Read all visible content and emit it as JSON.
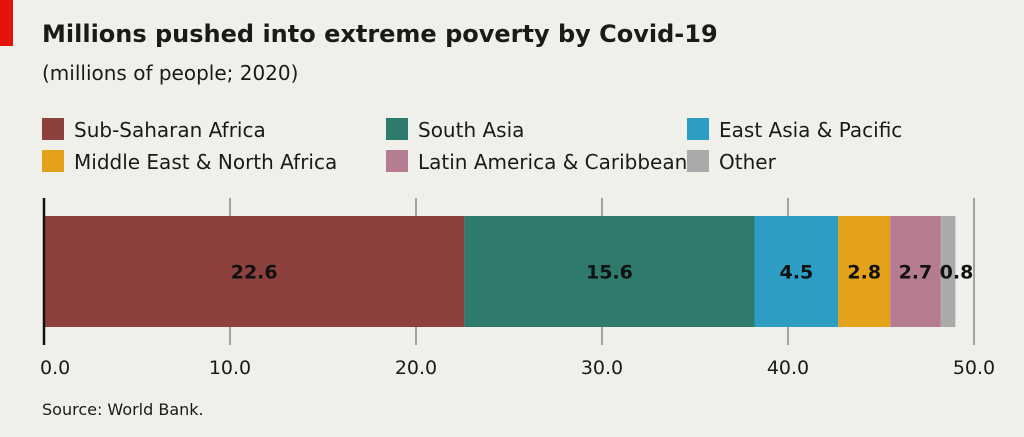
{
  "header": {
    "title": "Millions pushed into extreme poverty by Covid-19",
    "subtitle": "(millions of people; 2020)"
  },
  "source": "Source: World Bank.",
  "colors": {
    "background": "#f0f0eb",
    "accent": "#e3120b",
    "grid": "#555555"
  },
  "chart_data": {
    "type": "bar",
    "orientation": "horizontal",
    "stacked": true,
    "title": "Millions pushed into extreme poverty by Covid-19",
    "subtitle": "(millions of people; 2020)",
    "xlim": [
      0,
      50
    ],
    "x_ticks": [
      "0.0",
      "10.0",
      "20.0",
      "30.0",
      "40.0",
      "50.0"
    ],
    "x_tick_values": [
      0,
      10,
      20,
      30,
      40,
      50
    ],
    "grid": true,
    "legend_position": "top",
    "series": [
      {
        "name": "Sub-Saharan Africa",
        "value": 22.6,
        "label": "22.6",
        "color": "#8c413c"
      },
      {
        "name": "South Asia",
        "value": 15.6,
        "label": "15.6",
        "color": "#2e7a6c"
      },
      {
        "name": "East Asia & Pacific",
        "value": 4.5,
        "label": "4.5",
        "color": "#2e9dc4"
      },
      {
        "name": "Middle East & North Africa",
        "value": 2.8,
        "label": "2.8",
        "color": "#e3a21a"
      },
      {
        "name": "Latin America & Caribbean",
        "value": 2.7,
        "label": "2.7",
        "color": "#b57b91"
      },
      {
        "name": "Other",
        "value": 0.8,
        "label": "0.8",
        "color": "#aaaaaa"
      }
    ]
  }
}
